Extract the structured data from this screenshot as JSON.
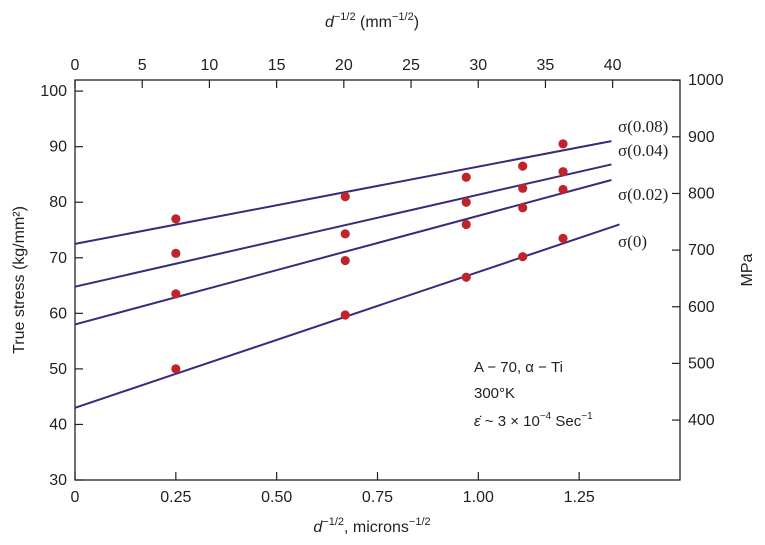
{
  "chart_data": {
    "type": "scatter",
    "xlabel_bottom": "d",
    "xlabel_bottom_sup": "−1/2",
    "xlabel_bottom_unit": ", microns",
    "xlabel_bottom_unit_sup": "−1/2",
    "xlabel_top": "d",
    "xlabel_top_sup": "−1/2",
    "xlabel_top_unit": " (mm",
    "xlabel_top_unit_sup": "−1/2",
    "xlabel_top_close": ")",
    "ylabel_left": "True stress (kg/mm²)",
    "ylabel_right": "MPa",
    "x_bottom_ticks": [
      "0",
      "0.25",
      "0.50",
      "0.75",
      "1.00",
      "1.25"
    ],
    "x_bottom_tick_values": [
      0,
      0.25,
      0.5,
      0.75,
      1.0,
      1.25
    ],
    "x_top_ticks": [
      "0",
      "5",
      "10",
      "15",
      "20",
      "25",
      "30",
      "35",
      "40"
    ],
    "x_top_tick_values": [
      0,
      5,
      10,
      15,
      20,
      25,
      30,
      35,
      40
    ],
    "y_left_ticks": [
      "30",
      "40",
      "50",
      "60",
      "70",
      "80",
      "90",
      "100"
    ],
    "y_left_tick_values": [
      30,
      40,
      50,
      60,
      70,
      80,
      90,
      100
    ],
    "y_right_ticks": [
      "400",
      "500",
      "600",
      "700",
      "800",
      "900",
      "1000"
    ],
    "y_right_tick_values": [
      400,
      500,
      600,
      700,
      800,
      900,
      1000
    ],
    "xlim": [
      0,
      1.5
    ],
    "ylim": [
      30,
      102
    ],
    "series": [
      {
        "name": "σ(0.08)",
        "line": [
          [
            0,
            72.5
          ],
          [
            1.33,
            91.0
          ]
        ],
        "points": [
          [
            0.25,
            77
          ],
          [
            0.67,
            81
          ],
          [
            0.97,
            84.5
          ],
          [
            1.11,
            86.5
          ],
          [
            1.21,
            90.5
          ]
        ]
      },
      {
        "name": "σ(0.04)",
        "line": [
          [
            0,
            64.8
          ],
          [
            1.33,
            86.8
          ]
        ],
        "points": [
          [
            0.25,
            70.8
          ],
          [
            0.67,
            74.3
          ],
          [
            0.97,
            80
          ],
          [
            1.11,
            82.5
          ],
          [
            1.21,
            85.5
          ]
        ]
      },
      {
        "name": "σ(0.02)",
        "line": [
          [
            0,
            58
          ],
          [
            1.33,
            84
          ]
        ],
        "points": [
          [
            0.25,
            63.5
          ],
          [
            0.67,
            69.5
          ],
          [
            0.97,
            76
          ],
          [
            1.11,
            79
          ],
          [
            1.21,
            82.3
          ]
        ]
      },
      {
        "name": "σ(0)",
        "line": [
          [
            0,
            43
          ],
          [
            1.35,
            76
          ]
        ],
        "points": [
          [
            0.25,
            50
          ],
          [
            0.67,
            59.7
          ],
          [
            0.97,
            66.5
          ],
          [
            1.11,
            70.2
          ],
          [
            1.21,
            73.5
          ]
        ]
      }
    ],
    "annotation": {
      "line1": "A − 70, α − Ti",
      "line2": "300°K",
      "line3_symbol": "ε̇",
      "line3_text": " ~ 3 × 10",
      "line3_sup": "−4",
      "line3_unit": " Sec",
      "line3_unit_sup": "−1"
    },
    "colors": {
      "line": "#3b2a7a",
      "point": "#c0242b",
      "axis": "#231f20"
    }
  }
}
